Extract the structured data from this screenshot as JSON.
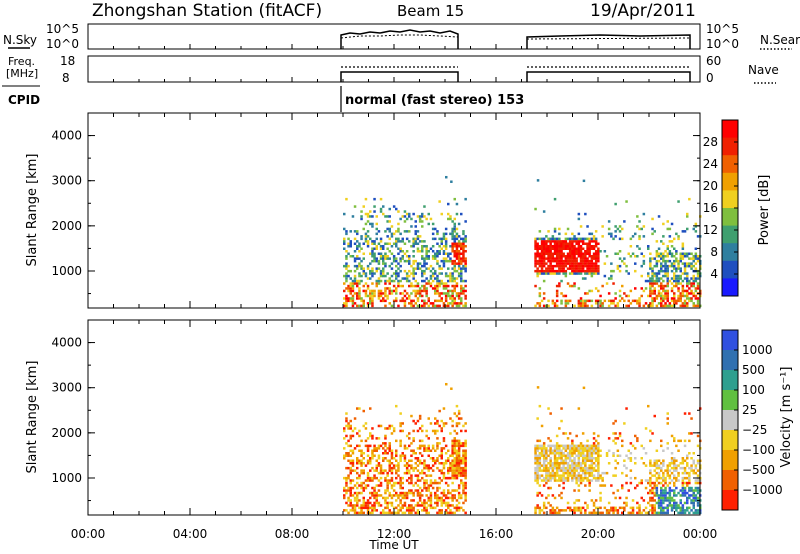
{
  "header": {
    "title": "Zhongshan Station (fitACF)",
    "beam": "Beam 15",
    "date": "19/Apr/2011"
  },
  "panels": {
    "nsky_label": "N.Sky",
    "nsearch_label": "N.Search",
    "nsky_ticks": [
      "10^5",
      "10^0"
    ],
    "nsearch_ticks": [
      "10^5",
      "10^0"
    ],
    "freq_label_1": "Freq.",
    "freq_label_2": "[MHz]",
    "freq_ticks": [
      "18",
      "8"
    ],
    "nave_label": "Nave",
    "nave_ticks": [
      "60",
      "0"
    ],
    "cpid_label": "CPID",
    "cpid_text": "normal (fast stereo) 153"
  },
  "colors": {
    "power": [
      "#1a1aff",
      "#1f4fbf",
      "#2f7f9f",
      "#3f9f6f",
      "#7fbf3f",
      "#f0d020",
      "#f0a000",
      "#f06000",
      "#f02000",
      "#ff0000"
    ],
    "velocity": [
      "#3050e0",
      "#3070b0",
      "#2f9f8f",
      "#60c040",
      "#c8c8c8",
      "#f0d020",
      "#f0a000",
      "#f06000",
      "#ff2000"
    ]
  },
  "chart_data": [
    {
      "type": "heatmap",
      "name": "Power",
      "ylabel": "Slant Range [km]",
      "colorbar_label": "Power [dB]",
      "colorbar_ticks": [
        "28",
        "24",
        "20",
        "16",
        "12",
        "8",
        "4"
      ],
      "colorbar_range": [
        0,
        32
      ],
      "y_ticks": [
        "4000",
        "3000",
        "2000",
        "1000"
      ],
      "ylim": [
        180,
        4500
      ],
      "xlim_hours": [
        0,
        24
      ],
      "data_intervals_UT": [
        [
          "10:00",
          "14:50"
        ],
        [
          "17:30",
          "24:00"
        ]
      ]
    },
    {
      "type": "heatmap",
      "name": "Velocity",
      "ylabel": "Slant Range [km]",
      "colorbar_label": "Velocity [m s⁻¹]",
      "colorbar_ticks": [
        "1000",
        "500",
        "100",
        "25",
        "−25",
        "−100",
        "−500",
        "−1000"
      ],
      "y_ticks": [
        "4000",
        "3000",
        "2000",
        "1000"
      ],
      "ylim": [
        180,
        4500
      ],
      "xlim_hours": [
        0,
        24
      ],
      "x_ticks": [
        "00:00",
        "04:00",
        "08:00",
        "12:00",
        "16:00",
        "20:00",
        "00:00"
      ],
      "xlabel": "Time UT"
    }
  ]
}
